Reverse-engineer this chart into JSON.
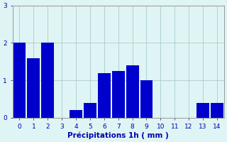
{
  "categories": [
    0,
    1,
    2,
    3,
    4,
    5,
    6,
    7,
    8,
    9,
    10,
    11,
    12,
    13,
    14
  ],
  "values": [
    2.0,
    1.6,
    2.0,
    0.0,
    0.2,
    0.4,
    1.2,
    1.25,
    1.4,
    1.0,
    0.0,
    0.0,
    0.0,
    0.4,
    0.4
  ],
  "bar_color": "#0000cc",
  "background_color": "#dff4f4",
  "grid_color": "#aacccc",
  "xlabel": "Précipitations 1h ( mm )",
  "ylim": [
    0,
    3
  ],
  "yticks": [
    0,
    1,
    2,
    3
  ],
  "xlim_left": -0.5,
  "xlim_right": 14.5,
  "bar_width": 0.9,
  "axis_fontsize": 7.5,
  "tick_fontsize": 6.5,
  "xlabel_fontsize": 7.5,
  "spine_color": "#999999"
}
